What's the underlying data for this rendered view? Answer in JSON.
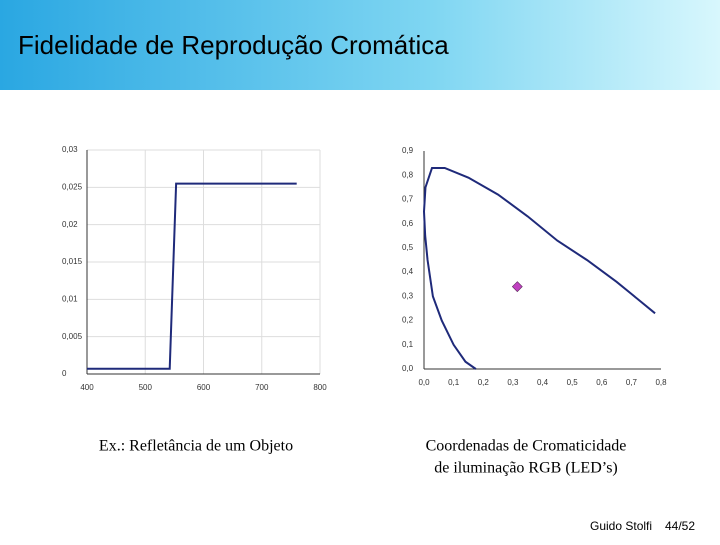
{
  "slide": {
    "title": "Fidelidade de Reprodução Cromática",
    "captions": [
      "Ex.: Refletância de um Objeto",
      "Coordenadas de Cromaticidade",
      "de iluminação RGB (LED’s)"
    ],
    "footer_author": "Guido Stolfi",
    "footer_page": "44/52"
  },
  "chart_data": [
    {
      "type": "line",
      "x": [
        400,
        542,
        553,
        760
      ],
      "values": [
        0.0007,
        0.0007,
        0.0255,
        0.0255
      ],
      "color": "#1f2a7a",
      "xlim": [
        400,
        800
      ],
      "xticks": [
        400,
        500,
        600,
        700,
        800
      ],
      "ylim": [
        0,
        0.03
      ],
      "yticks": [
        0,
        {
          "value": 0.005,
          "label": "0,005"
        },
        {
          "value": 0.01,
          "label": "0,01"
        },
        {
          "value": 0.015,
          "label": "0,015"
        },
        {
          "value": 0.02,
          "label": "0,02"
        },
        {
          "value": 0.025,
          "label": "0,025"
        },
        {
          "value": 0.03,
          "label": "0,03"
        }
      ],
      "grid": true
    },
    {
      "type": "line",
      "series": [
        {
          "color": "#1f2a7a",
          "marker": "none",
          "x": [
            0.175,
            0.14,
            0.1,
            0.06,
            0.03,
            0.012,
            0.004,
            0.0,
            0.005,
            0.027,
            0.07,
            0.15,
            0.25,
            0.35,
            0.45,
            0.55,
            0.65,
            0.7,
            0.78
          ],
          "values": [
            0.0,
            0.03,
            0.1,
            0.2,
            0.3,
            0.45,
            0.55,
            0.65,
            0.75,
            0.83,
            0.83,
            0.79,
            0.72,
            0.63,
            0.53,
            0.45,
            0.36,
            0.31,
            0.23
          ]
        },
        {
          "color": "#c040c0",
          "marker": "diamond",
          "x": [
            0.315
          ],
          "values": [
            0.34
          ]
        }
      ],
      "xlim": [
        0,
        0.8
      ],
      "xticks": [
        {
          "value": 0,
          "label": "0,0"
        },
        {
          "value": 0.1,
          "label": "0,1"
        },
        {
          "value": 0.2,
          "label": "0,2"
        },
        {
          "value": 0.3,
          "label": "0,3"
        },
        {
          "value": 0.4,
          "label": "0,4"
        },
        {
          "value": 0.5,
          "label": "0,5"
        },
        {
          "value": 0.6,
          "label": "0,6"
        },
        {
          "value": 0.7,
          "label": "0,7"
        },
        {
          "value": 0.8,
          "label": "0,8"
        }
      ],
      "ylim": [
        0,
        0.9
      ],
      "yticks": [
        {
          "value": 0,
          "label": "0,0"
        },
        {
          "value": 0.1,
          "label": "0,1"
        },
        {
          "value": 0.2,
          "label": "0,2"
        },
        {
          "value": 0.3,
          "label": "0,3"
        },
        {
          "value": 0.4,
          "label": "0,4"
        },
        {
          "value": 0.5,
          "label": "0,5"
        },
        {
          "value": 0.6,
          "label": "0,6"
        },
        {
          "value": 0.7,
          "label": "0,7"
        },
        {
          "value": 0.8,
          "label": "0,8"
        },
        {
          "value": 0.9,
          "label": "0,9"
        }
      ],
      "grid": false
    }
  ]
}
